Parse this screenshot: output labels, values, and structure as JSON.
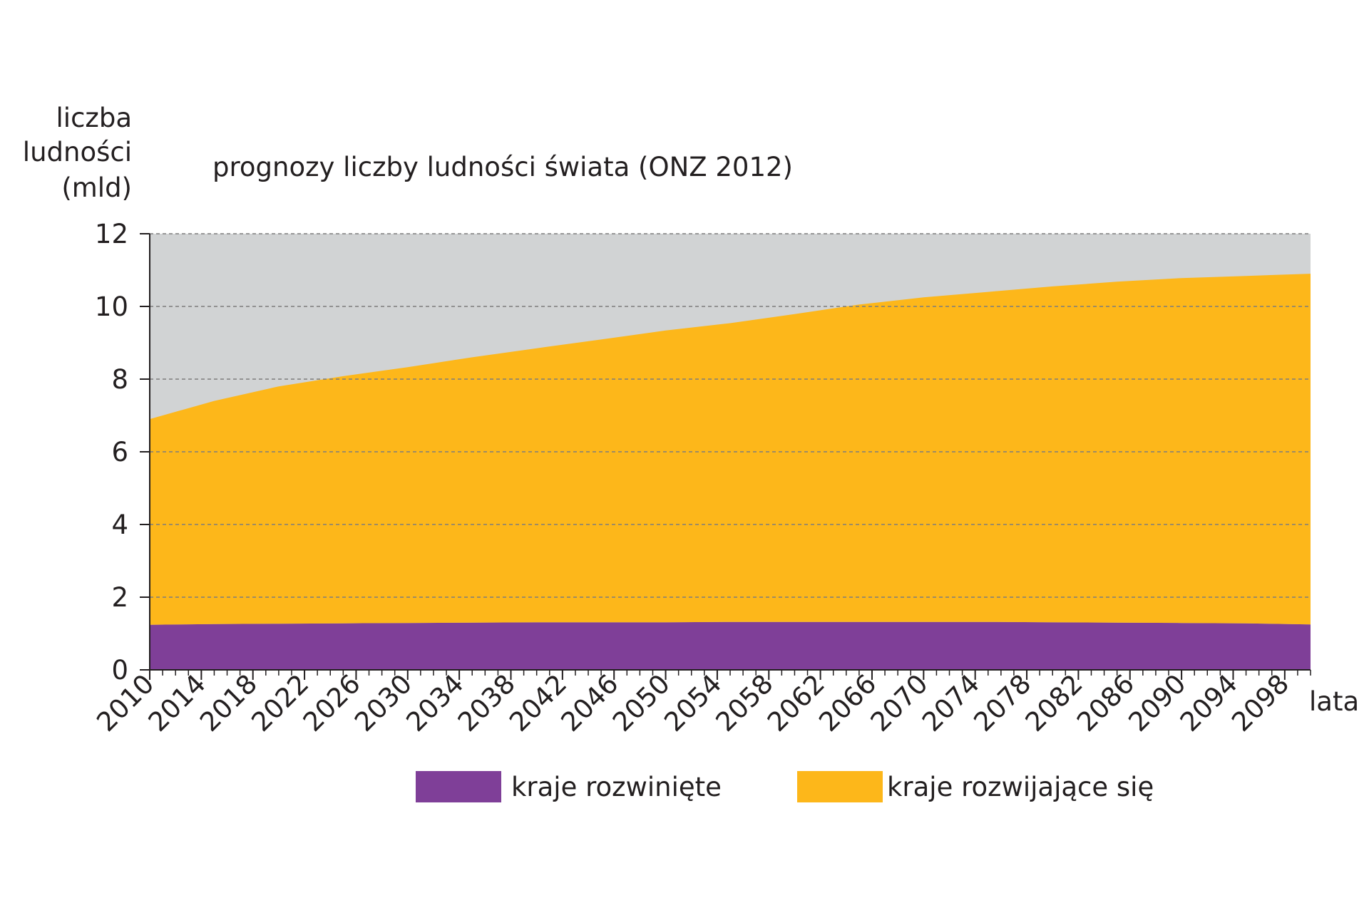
{
  "chart_data": {
    "type": "area",
    "title": "prognozy liczby ludności świata (ONZ 2012)",
    "ylabel": [
      "liczba",
      "ludności",
      "(mld)"
    ],
    "xlabel": "lata",
    "ylim": [
      0,
      12
    ],
    "yticks": [
      0,
      2,
      4,
      6,
      8,
      10,
      12
    ],
    "xlim": [
      2010,
      2100
    ],
    "xticks": [
      2010,
      2014,
      2018,
      2022,
      2026,
      2030,
      2034,
      2038,
      2042,
      2046,
      2050,
      2054,
      2058,
      2062,
      2066,
      2070,
      2074,
      2078,
      2082,
      2086,
      2090,
      2094,
      2098
    ],
    "minor_tick_step": 1,
    "grid": "horizontal dashed",
    "stacked": true,
    "plot_background": "#d1d3d4",
    "x": [
      2010,
      2015,
      2020,
      2025,
      2030,
      2035,
      2040,
      2045,
      2050,
      2055,
      2060,
      2065,
      2070,
      2075,
      2080,
      2085,
      2090,
      2095,
      2100
    ],
    "series": [
      {
        "name": "kraje rozwinięte",
        "color": "#7f3f98",
        "values": [
          1.24,
          1.26,
          1.27,
          1.28,
          1.29,
          1.3,
          1.31,
          1.31,
          1.31,
          1.32,
          1.32,
          1.32,
          1.32,
          1.32,
          1.31,
          1.3,
          1.29,
          1.28,
          1.25
        ]
      },
      {
        "name": "kraje rozwijające się",
        "color": "#fdb71a",
        "values": [
          5.66,
          6.14,
          6.53,
          6.8,
          7.04,
          7.3,
          7.54,
          7.78,
          8.03,
          8.22,
          8.47,
          8.73,
          8.93,
          9.08,
          9.24,
          9.38,
          9.49,
          9.56,
          9.65
        ]
      }
    ],
    "legend_position": "bottom-center"
  }
}
